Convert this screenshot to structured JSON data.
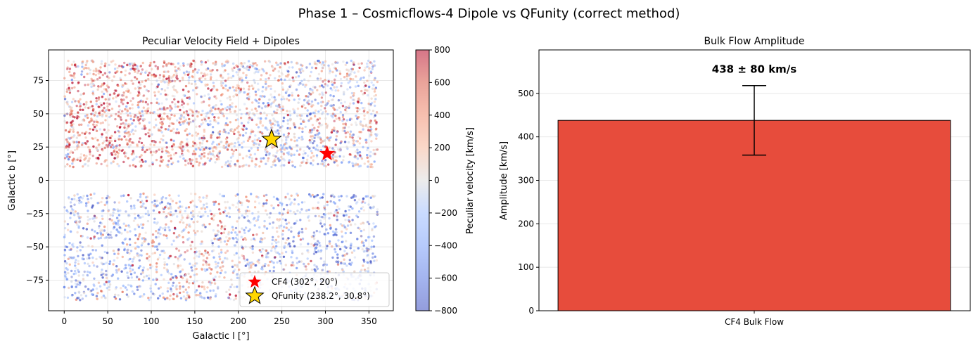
{
  "figure": {
    "suptitle": "Phase 1 – Cosmicflows-4 Dipole vs QFunity (correct method)"
  },
  "chart_data": [
    {
      "type": "scatter",
      "title": "Peculiar Velocity Field + Dipoles",
      "xlabel": "Galactic l [°]",
      "ylabel": "Galactic b [°]",
      "xlim": [
        -18,
        378
      ],
      "ylim": [
        -98,
        98
      ],
      "xticks": [
        0,
        50,
        100,
        150,
        200,
        250,
        300,
        350
      ],
      "yticks": [
        -75,
        -50,
        -25,
        0,
        25,
        50,
        75
      ],
      "grid": true,
      "legend_position": "lower-right",
      "field": {
        "description_visible": false,
        "l_range": [
          0,
          360
        ],
        "b_north": [
          10,
          90
        ],
        "b_south": [
          -90,
          -10
        ],
        "velocity_range": [
          -800,
          800
        ]
      },
      "markers": [
        {
          "name": "CF4 (302°, 20°)",
          "l": 302,
          "b": 20,
          "color": "#ff0000",
          "shape": "star"
        },
        {
          "name": "QFunity (238.2°, 30.8°)",
          "l": 238.2,
          "b": 30.8,
          "color": "#ffd700",
          "shape": "star"
        }
      ],
      "colorbar": {
        "label": "Peculiar velocity [km/s]",
        "min": -800,
        "max": 800,
        "ticks": [
          -800,
          -600,
          -400,
          -200,
          0,
          200,
          400,
          600,
          800
        ],
        "colormap": "coolwarm"
      }
    },
    {
      "type": "bar",
      "title": "Bulk Flow Amplitude",
      "categories": [
        "CF4 Bulk Flow"
      ],
      "values": [
        438
      ],
      "errors": [
        80
      ],
      "annotation": "438 ± 80 km/s",
      "xlabel": "",
      "ylabel": "Amplitude [km/s]",
      "ylim": [
        0,
        600
      ],
      "yticks": [
        0,
        100,
        200,
        300,
        400,
        500
      ],
      "grid": true,
      "bar_color": "#e74c3c"
    }
  ]
}
